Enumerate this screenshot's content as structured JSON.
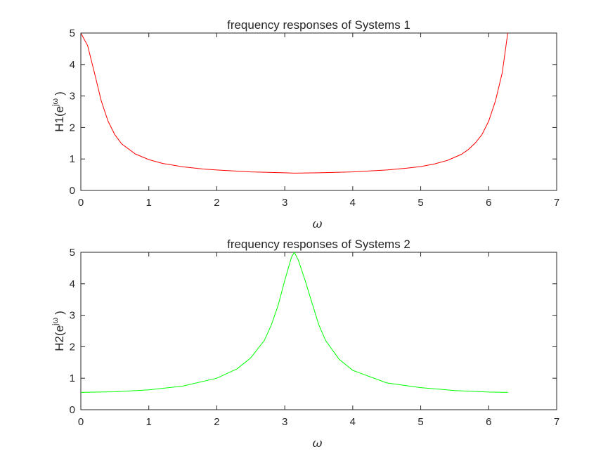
{
  "chart_data": [
    {
      "type": "line",
      "title": "frequency responses of Systems 1",
      "xlabel": "ω",
      "ylabel": {
        "base": "H1(e",
        "sup": "jω",
        "close": ")"
      },
      "xlim": [
        0,
        7
      ],
      "ylim": [
        0,
        5
      ],
      "xticks": [
        "0",
        "1",
        "2",
        "3",
        "4",
        "5",
        "6",
        "7"
      ],
      "yticks": [
        "0",
        "1",
        "2",
        "3",
        "4",
        "5"
      ],
      "grid": false,
      "series": [
        {
          "color": "#ff0000",
          "x": [
            0,
            0.1,
            0.2,
            0.3,
            0.4,
            0.5,
            0.6,
            0.8,
            1.0,
            1.2,
            1.5,
            1.8,
            2.0,
            2.5,
            3.0,
            3.14,
            3.5,
            4.0,
            4.5,
            4.8,
            5.0,
            5.2,
            5.4,
            5.6,
            5.7,
            5.8,
            5.9,
            6.0,
            6.1,
            6.2,
            6.28
          ],
          "y": [
            5.0,
            4.6,
            3.74,
            2.85,
            2.2,
            1.77,
            1.48,
            1.16,
            0.98,
            0.86,
            0.75,
            0.68,
            0.65,
            0.59,
            0.56,
            0.55,
            0.56,
            0.59,
            0.65,
            0.71,
            0.76,
            0.84,
            0.96,
            1.15,
            1.3,
            1.5,
            1.77,
            2.2,
            2.85,
            3.74,
            5.0
          ]
        }
      ]
    },
    {
      "type": "line",
      "title": "frequency responses of Systems 2",
      "xlabel": "ω",
      "ylabel": {
        "base": "H2(e",
        "sup": "jω",
        "close": ")"
      },
      "xlim": [
        0,
        7
      ],
      "ylim": [
        0,
        5
      ],
      "xticks": [
        "0",
        "1",
        "2",
        "3",
        "4",
        "5",
        "6",
        "7"
      ],
      "yticks": [
        "0",
        "1",
        "2",
        "3",
        "4",
        "5"
      ],
      "grid": false,
      "series": [
        {
          "color": "#00ff00",
          "x": [
            0,
            0.5,
            1.0,
            1.5,
            2.0,
            2.3,
            2.5,
            2.7,
            2.8,
            2.9,
            3.0,
            3.1,
            3.14,
            3.2,
            3.3,
            3.4,
            3.5,
            3.6,
            3.8,
            4.0,
            4.5,
            5.0,
            5.5,
            6.0,
            6.28
          ],
          "y": [
            0.55,
            0.57,
            0.63,
            0.75,
            1.0,
            1.3,
            1.65,
            2.2,
            2.68,
            3.3,
            4.1,
            4.85,
            5.0,
            4.75,
            4.1,
            3.4,
            2.7,
            2.2,
            1.6,
            1.25,
            0.85,
            0.7,
            0.61,
            0.56,
            0.55
          ]
        }
      ]
    }
  ]
}
